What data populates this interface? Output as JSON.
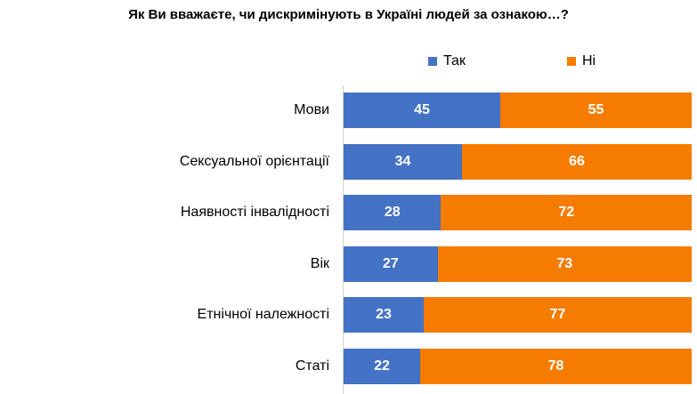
{
  "title": "Як Ви вважаєте, чи дискримінують в Україні людей за ознакою…?",
  "legend": [
    {
      "label": "Так",
      "color": "#4472c4"
    },
    {
      "label": "Ні",
      "color": "#f57c00"
    }
  ],
  "chart_data": {
    "type": "bar",
    "orientation": "horizontal",
    "stacked": true,
    "title": "Як Ви вважаєте, чи дискримінують в Україні людей за ознакою…?",
    "categories": [
      "Мови",
      "Сексуальної орієнтації",
      "Наявності інвалідності",
      "Вік",
      "Етнічної належності",
      "Статі"
    ],
    "series": [
      {
        "name": "Так",
        "color": "#4472c4",
        "values": [
          45,
          34,
          28,
          27,
          23,
          22
        ]
      },
      {
        "name": "Ні",
        "color": "#f57c00",
        "values": [
          55,
          66,
          72,
          73,
          77,
          78
        ]
      }
    ],
    "xlim": [
      0,
      100
    ],
    "legend_position": "top-right",
    "grid": false
  }
}
